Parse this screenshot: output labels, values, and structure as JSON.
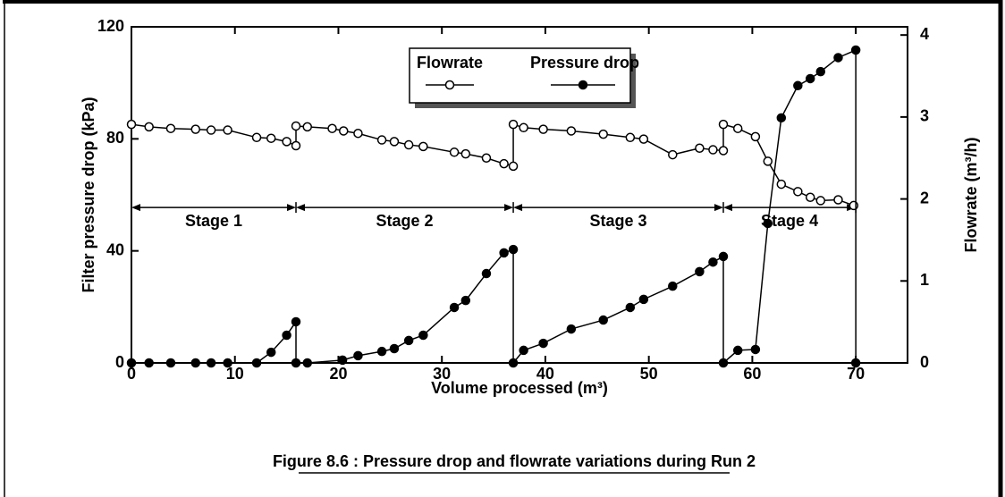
{
  "chart_data": {
    "type": "line",
    "caption": "Figure 8.6 : Pressure drop and flowrate variations during Run 2",
    "xlabel": "Volume processed (m³)",
    "ylabel": "Filter pressure drop (kPa)",
    "y2label": "Flowrate (m³/h)",
    "xlim": [
      0,
      75
    ],
    "xticks": [
      0,
      10,
      20,
      30,
      40,
      50,
      60,
      70
    ],
    "ylim": [
      0,
      120
    ],
    "yticks": [
      0,
      40,
      80,
      120
    ],
    "y2lim": [
      0,
      4.1
    ],
    "y2ticks": [
      0,
      1,
      2,
      3,
      4
    ],
    "legend": "top",
    "series": [
      {
        "name": "Flowrate",
        "color": "#000000",
        "marker": "open",
        "axis": "y2",
        "x": [
          0,
          1.7,
          3.8,
          6.2,
          7.7,
          9.3,
          12.1,
          13.5,
          15.0,
          15.9,
          15.9,
          17.0,
          19.4,
          20.5,
          21.9,
          24.2,
          25.4,
          26.8,
          28.2,
          31.2,
          32.3,
          34.3,
          36.0,
          36.9,
          36.9,
          37.9,
          39.8,
          42.5,
          45.6,
          48.2,
          49.5,
          52.3,
          54.9,
          56.2,
          57.2,
          57.2,
          58.6,
          60.3,
          61.5,
          62.8,
          64.4,
          65.6,
          66.6,
          68.3,
          69.8
        ],
        "values": [
          2.91,
          2.88,
          2.86,
          2.85,
          2.84,
          2.84,
          2.75,
          2.74,
          2.7,
          2.65,
          2.89,
          2.88,
          2.86,
          2.83,
          2.8,
          2.72,
          2.7,
          2.66,
          2.64,
          2.57,
          2.55,
          2.5,
          2.43,
          2.4,
          2.91,
          2.87,
          2.85,
          2.83,
          2.79,
          2.75,
          2.73,
          2.54,
          2.62,
          2.6,
          2.59,
          2.91,
          2.86,
          2.76,
          2.46,
          2.18,
          2.09,
          2.02,
          1.98,
          1.99,
          1.92
        ]
      },
      {
        "name": "Pressure drop",
        "color": "#000000",
        "marker": "filled",
        "x": [
          0,
          1.7,
          3.8,
          6.2,
          7.7,
          9.3,
          12.1,
          13.5,
          15.0,
          15.9,
          15.9,
          17.0,
          20.4,
          21.9,
          24.2,
          25.4,
          26.8,
          28.2,
          31.2,
          32.3,
          34.3,
          36.0,
          36.9,
          36.9,
          37.9,
          39.8,
          42.5,
          45.6,
          48.2,
          49.5,
          52.3,
          54.9,
          56.2,
          57.2,
          57.2,
          58.6,
          60.3,
          61.5,
          62.8,
          64.4,
          65.6,
          66.6,
          68.3,
          70,
          70
        ],
        "values": [
          0,
          0,
          0,
          0,
          0,
          0,
          0,
          3.8,
          9.9,
          14.7,
          0,
          0,
          1.0,
          2.6,
          4.1,
          5.1,
          8.0,
          9.9,
          19.8,
          22.3,
          31.9,
          39.3,
          40.5,
          0,
          4.5,
          7.0,
          12.1,
          15.3,
          19.8,
          22.7,
          27.4,
          32.6,
          36.0,
          38.0,
          0,
          4.5,
          4.8,
          49.8,
          87.5,
          99.0,
          101.5,
          104.0,
          109.0,
          111.7,
          0
        ]
      }
    ],
    "stages": [
      {
        "label": "Stage 1",
        "start": 0,
        "end": 15.9,
        "y": 55.5
      },
      {
        "label": "Stage 2",
        "start": 15.9,
        "end": 36.9,
        "y": 55.5
      },
      {
        "label": "Stage 3",
        "start": 36.9,
        "end": 57.2,
        "y": 55.5
      },
      {
        "label": "Stage 4",
        "start": 57.2,
        "end": 70,
        "y": 55.5
      }
    ]
  }
}
